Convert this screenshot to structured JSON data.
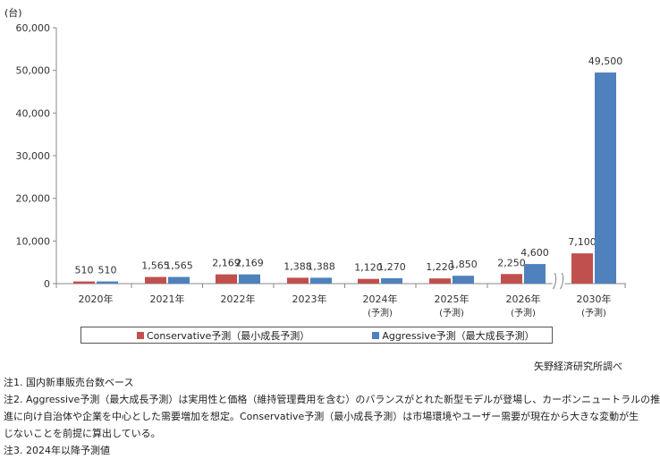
{
  "chart_data": {
    "type": "bar",
    "unit_label": "(台)",
    "categories": [
      "2020年",
      "2021年",
      "2022年",
      "2023年",
      "2024年",
      "2025年",
      "2026年",
      "2030年"
    ],
    "category_sublabels": [
      "",
      "",
      "",
      "",
      "(予測)",
      "(予測)",
      "(予測)",
      "(予測)"
    ],
    "series": [
      {
        "name": "Conservative予測（最小成長予測）",
        "color": "#c0504d",
        "values": [
          510,
          1565,
          2169,
          1388,
          1120,
          1220,
          2250,
          7100
        ],
        "labels": [
          "510",
          "1,565",
          "2,169",
          "1,388",
          "1,120",
          "1,220",
          "2,250",
          "7,100"
        ]
      },
      {
        "name": "Aggressive予測（最大成長予測）",
        "color": "#4f81bd",
        "values": [
          510,
          1565,
          2169,
          1388,
          1270,
          1850,
          4600,
          49500
        ],
        "labels": [
          "510",
          "1,565",
          "2,169",
          "1,388",
          "1,270",
          "1,850",
          "4,600",
          "49,500"
        ]
      }
    ],
    "ylim": [
      0,
      60000
    ],
    "yticks": [
      0,
      10000,
      20000,
      30000,
      40000,
      50000,
      60000
    ],
    "ytick_labels": [
      "0",
      "10,000",
      "20,000",
      "30,000",
      "40,000",
      "50,000",
      "60,000"
    ],
    "grid": false,
    "axis_break": "between 2026年 and 2030年",
    "legend_position": "bottom"
  },
  "legend": {
    "conservative": "Conservative予測（最小成長予測）",
    "aggressive": "Aggressive予測（最大成長予測）"
  },
  "source": "矢野経済研究所調べ",
  "notes": [
    "注1. 国内新車販売台数ベース",
    "注2. Aggressive予測（最大成長予測）は実用性と価格（維持管理費用を含む）のバランスがとれた新型モデルが登場し、カーボンニュートラルの推",
    "進に向け自治体や企業を中心とした需要増加を想定。Conservative予測（最小成長予測）は市場環境やユーザー需要が現在から大きな変動が生",
    "じないことを前提に算出している。",
    "注3. 2024年以降予測値"
  ]
}
